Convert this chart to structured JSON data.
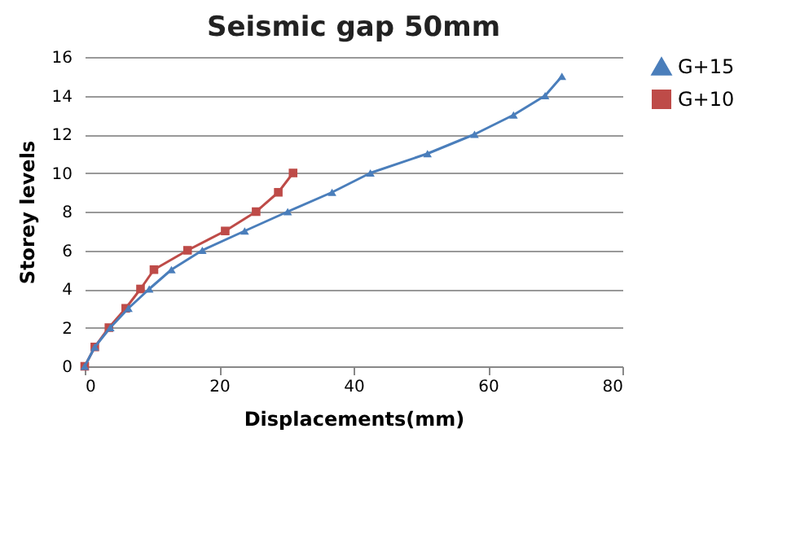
{
  "chart_data": {
    "type": "line",
    "title": "Seismic gap 50mm",
    "xlabel": "Displacements(mm)",
    "ylabel": "Storey levels",
    "xlim": [
      0,
      80
    ],
    "xticks": [
      0,
      20,
      40,
      60,
      80
    ],
    "ylim": [
      0,
      16
    ],
    "yticks": [
      0,
      2,
      4,
      6,
      8,
      10,
      12,
      14,
      16
    ],
    "grid": "y",
    "legend": "right",
    "series": [
      {
        "name": "G+15",
        "color": "#4a7ebb",
        "marker": "triangle",
        "x": [
          0,
          1.5,
          3.8,
          6.5,
          9.6,
          12.9,
          17.5,
          23.8,
          30.2,
          36.8,
          42.5,
          51,
          58,
          63.8,
          68.5,
          71
        ],
        "values": [
          0,
          1,
          2,
          3,
          4,
          5,
          6,
          7,
          8,
          9,
          10,
          11,
          12,
          13,
          14,
          15
        ]
      },
      {
        "name": "G+10",
        "color": "#be4b48",
        "marker": "square",
        "x": [
          0,
          1.5,
          3.6,
          6.1,
          8.3,
          10.3,
          15.3,
          20.9,
          25.5,
          28.8,
          31
        ],
        "values": [
          0,
          1,
          2,
          3,
          4,
          5,
          6,
          7,
          8,
          9,
          10
        ]
      }
    ]
  }
}
